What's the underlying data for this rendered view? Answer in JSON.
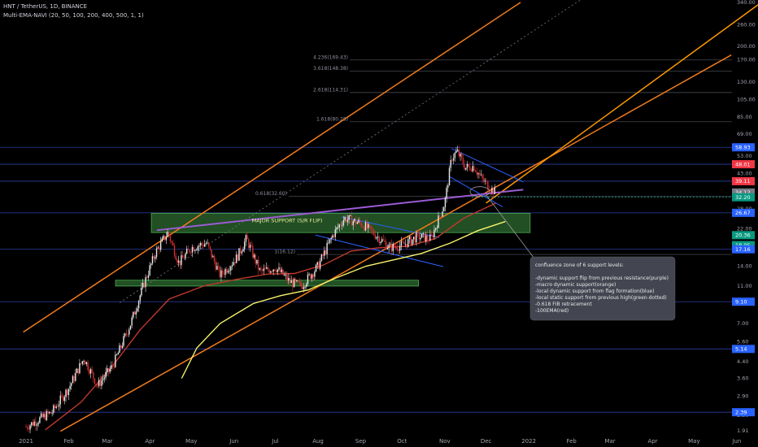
{
  "header": {
    "symbol": "HNT / TetherUS, 1D, BINANCE",
    "indicator": "Multi-EMA-NAVI (20, 50, 100, 200, 400, 500, 1, 1)"
  },
  "chart_data": {
    "type": "candlestick",
    "x_axis": {
      "labels": [
        "2021",
        "Feb",
        "Mar",
        "Apr",
        "May",
        "Jun",
        "Jul",
        "Aug",
        "Sep",
        "Oct",
        "Nov",
        "Dec",
        "2022",
        "Feb",
        "Mar",
        "Apr",
        "May",
        "Jun"
      ],
      "dates": [
        "2021-01-01",
        "2021-02-01",
        "2021-03-01",
        "2021-04-01",
        "2021-05-01",
        "2021-06-01",
        "2021-07-01",
        "2021-08-01",
        "2021-09-01",
        "2021-10-01",
        "2021-11-01",
        "2021-12-01",
        "2022-01-01",
        "2022-02-01",
        "2022-03-01",
        "2022-04-01",
        "2022-05-01",
        "2022-06-01"
      ]
    },
    "y_axis": {
      "scale": "log",
      "ticks": [
        "340.00",
        "260.00",
        "200.00",
        "170.00",
        "130.00",
        "105.00",
        "85.00",
        "69.00",
        "53.00",
        "43.00",
        "34.00",
        "28.00",
        "22.00",
        "17.00",
        "14.00",
        "11.00",
        "9.00",
        "7.00",
        "5.60",
        "4.40",
        "3.60",
        "2.90",
        "2.30",
        "1.91"
      ],
      "tick_values": [
        340,
        260,
        200,
        170,
        130,
        105,
        85,
        69,
        53,
        43,
        34,
        28,
        22,
        17,
        14,
        11,
        9,
        7,
        5.6,
        4.4,
        3.6,
        2.9,
        2.3,
        1.91
      ],
      "ylim": [
        1.85,
        360
      ]
    },
    "price_labels": [
      {
        "text": "58.93",
        "value": 58.93,
        "color": "#2962ff"
      },
      {
        "text": "48.01",
        "value": 48.01,
        "color": "#f23645"
      },
      {
        "text": "39.11",
        "value": 39.11,
        "color": "#f23645"
      },
      {
        "text": "34.12",
        "value": 34.12,
        "color": "#787b86"
      },
      {
        "text": "32.20",
        "value": 32.2,
        "color": "#089981"
      },
      {
        "text": "26.67",
        "value": 26.67,
        "color": "#2962ff"
      },
      {
        "text": "20.36",
        "value": 20.36,
        "color": "#089981"
      },
      {
        "text": "18.05",
        "value": 18.05,
        "color": "#089981"
      },
      {
        "text": "17.16",
        "value": 17.16,
        "color": "#2962ff"
      },
      {
        "text": "9.10",
        "value": 9.1,
        "color": "#2962ff"
      },
      {
        "text": "5.14",
        "value": 5.14,
        "color": "#2962ff"
      },
      {
        "text": "2.39",
        "value": 2.39,
        "color": "#2962ff"
      }
    ],
    "horizontal_levels": [
      58.93,
      48.01,
      39.11,
      26.67,
      17.16,
      9.1,
      5.14,
      2.39
    ],
    "fib_levels": [
      {
        "text": "4.236(169.43)",
        "value": 169.43
      },
      {
        "text": "3.618(148.38)",
        "value": 148.38
      },
      {
        "text": "2.618(114.31)",
        "value": 114.31
      },
      {
        "text": "1.618(80.25)",
        "value": 80.25
      },
      {
        "text": "0.618(32.60)",
        "value": 32.6
      },
      {
        "text": "1(16.12)",
        "value": 16.12
      }
    ],
    "annotations": {
      "major_support_label": "MAJOR SUPPORT (S/R FLIP)",
      "callout_lines": [
        "confluence zone of 6 support levels:",
        "",
        "-dynamic support flip from previous resistance(purple)",
        "-macro dynamic support(orange)",
        "-local dynamic support from flag formation(blue)",
        "-local static support from previous high(green-dotted)",
        "-0.618 FIB retracement",
        "-100EMA(red)"
      ]
    },
    "ohlc_keypoints": [
      [
        "2021-01-01",
        2.0
      ],
      [
        "2021-01-20",
        2.4
      ],
      [
        "2021-02-01",
        3.2
      ],
      [
        "2021-02-12",
        4.6
      ],
      [
        "2021-02-22",
        3.3
      ],
      [
        "2021-03-05",
        4.2
      ],
      [
        "2021-03-18",
        7.0
      ],
      [
        "2021-03-28",
        11.5
      ],
      [
        "2021-04-05",
        16.5
      ],
      [
        "2021-04-14",
        21.0
      ],
      [
        "2021-04-22",
        14.5
      ],
      [
        "2021-05-01",
        17.5
      ],
      [
        "2021-05-12",
        18.5
      ],
      [
        "2021-05-22",
        12.5
      ],
      [
        "2021-06-03",
        15.5
      ],
      [
        "2021-06-10",
        19.5
      ],
      [
        "2021-06-20",
        13.0
      ],
      [
        "2021-07-01",
        13.8
      ],
      [
        "2021-07-12",
        11.5
      ],
      [
        "2021-07-20",
        11.0
      ],
      [
        "2021-08-01",
        14.0
      ],
      [
        "2021-08-12",
        20.5
      ],
      [
        "2021-08-20",
        25.0
      ],
      [
        "2021-09-01",
        23.5
      ],
      [
        "2021-09-10",
        21.0
      ],
      [
        "2021-09-22",
        17.5
      ],
      [
        "2021-10-01",
        18.0
      ],
      [
        "2021-10-12",
        20.0
      ],
      [
        "2021-10-22",
        19.5
      ],
      [
        "2021-11-01",
        30.0
      ],
      [
        "2021-11-06",
        52.0
      ],
      [
        "2021-11-10",
        56.0
      ],
      [
        "2021-11-16",
        46.0
      ],
      [
        "2021-11-22",
        47.0
      ],
      [
        "2021-11-28",
        40.0
      ],
      [
        "2021-12-04",
        36.0
      ],
      [
        "2021-12-08",
        34.1
      ]
    ],
    "series": [
      {
        "name": "EMA yellow",
        "color": "#f7f36b",
        "points": [
          [
            "2021-04-24",
            3.6
          ],
          [
            "2021-05-05",
            5.2
          ],
          [
            "2021-05-22",
            7.0
          ],
          [
            "2021-06-15",
            8.9
          ],
          [
            "2021-07-05",
            9.8
          ],
          [
            "2021-07-25",
            10.5
          ],
          [
            "2021-08-15",
            12.2
          ],
          [
            "2021-09-05",
            14.0
          ],
          [
            "2021-09-25",
            15.1
          ],
          [
            "2021-10-15",
            16.3
          ],
          [
            "2021-11-05",
            18.5
          ],
          [
            "2021-11-25",
            21.5
          ],
          [
            "2021-12-15",
            24.0
          ]
        ]
      },
      {
        "name": "EMA red",
        "color": "#c0392b",
        "points": [
          [
            "2021-01-15",
            1.93
          ],
          [
            "2021-02-10",
            2.7
          ],
          [
            "2021-03-05",
            4.2
          ],
          [
            "2021-03-25",
            6.5
          ],
          [
            "2021-04-15",
            9.4
          ],
          [
            "2021-05-10",
            11.0
          ],
          [
            "2021-06-05",
            12.0
          ],
          [
            "2021-06-25",
            12.7
          ],
          [
            "2021-07-15",
            12.8
          ],
          [
            "2021-08-05",
            14.2
          ],
          [
            "2021-08-25",
            16.8
          ],
          [
            "2021-09-15",
            17.5
          ],
          [
            "2021-10-05",
            17.8
          ],
          [
            "2021-10-25",
            19.5
          ],
          [
            "2021-11-15",
            25.0
          ],
          [
            "2021-12-08",
            30.0
          ]
        ]
      }
    ],
    "trendlines": [
      {
        "name": "channel-upper",
        "color": "#f07b1c",
        "from": [
          "2020-12-30",
          6.3
        ],
        "to": [
          "2021-12-26",
          340
        ]
      },
      {
        "name": "channel-lower",
        "color": "#f07b1c",
        "from": [
          "2021-01-26",
          1.9
        ],
        "to": [
          "2022-05-28",
          180
        ]
      },
      {
        "name": "channel-mid",
        "color": "#ff9800",
        "from": [
          "2021-12-01",
          30
        ],
        "to": [
          "2022-06-20",
          345
        ]
      },
      {
        "name": "purple-resistance",
        "color": "#9c5bd4",
        "from": [
          "2021-04-06",
          21.6
        ],
        "to": [
          "2021-12-28",
          35.3
        ]
      },
      {
        "name": "flag-upper-1",
        "color": "#2962ff",
        "from": [
          "2021-08-18",
          25.4
        ],
        "to": [
          "2021-10-28",
          19.8
        ]
      },
      {
        "name": "flag-lower-1",
        "color": "#2962ff",
        "from": [
          "2021-07-30",
          20.4
        ],
        "to": [
          "2021-10-31",
          13.9
        ]
      },
      {
        "name": "flag-upper-2",
        "color": "#2962ff",
        "from": [
          "2021-11-06",
          58.0
        ],
        "to": [
          "2021-12-28",
          38.8
        ]
      },
      {
        "name": "flag-lower-2",
        "color": "#2962ff",
        "from": [
          "2021-11-04",
          41.5
        ],
        "to": [
          "2021-12-13",
          28.7
        ]
      },
      {
        "name": "grey-dotted-trend",
        "color": "#787b86",
        "from": [
          "2021-03-10",
          9.0
        ],
        "to": [
          "2022-02-10",
          360
        ]
      }
    ],
    "zones": [
      {
        "name": "major-support-zone",
        "date_from": "2021-04-02",
        "date_to": "2022-01-02",
        "from": 21.0,
        "to": 26.5
      },
      {
        "name": "lower-support-zone",
        "date_from": "2021-03-07",
        "date_to": "2021-10-13",
        "from": 11.0,
        "to": 11.8
      }
    ]
  }
}
